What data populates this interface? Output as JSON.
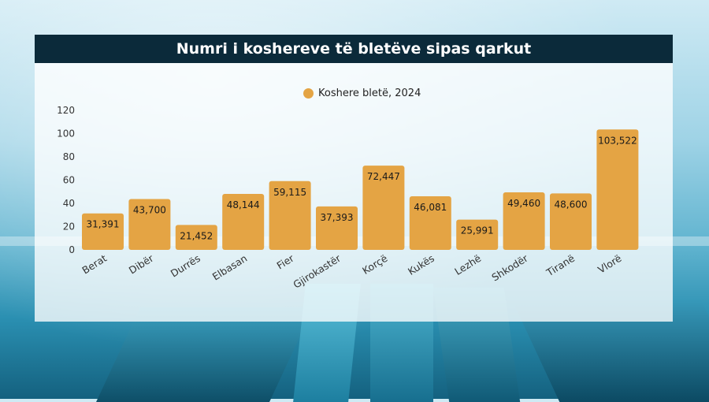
{
  "header": {
    "title": "Numri i koshereve të bletëve sipas qarkut"
  },
  "chart_data": {
    "type": "bar",
    "title": "Numri i koshereve të bletëve sipas qarkut",
    "series": [
      {
        "name": "Koshere bletë, 2024",
        "values": [
          31391,
          43700,
          21452,
          48144,
          59115,
          37393,
          72447,
          46081,
          25991,
          49460,
          48600,
          103522
        ],
        "labels": [
          "31,391",
          "43,700",
          "21,452",
          "48,144",
          "59,115",
          "37,393",
          "72,447",
          "46,081",
          "25,991",
          "49,460",
          "48,600",
          "103,522"
        ]
      }
    ],
    "categories": [
      "Berat",
      "Dibër",
      "Durrës",
      "Elbasan",
      "Fier",
      "Gjirokastër",
      "Korçë",
      "Kukës",
      "Lezhë",
      "Shkodër",
      "Tiranë",
      "Vlorë"
    ],
    "y_ticks": [
      "0",
      "20",
      "40",
      "60",
      "80",
      "100",
      "120"
    ],
    "ylim": [
      0,
      120000
    ],
    "legend_position": "top-center",
    "bar_color": "#e4a444",
    "grid": false
  }
}
